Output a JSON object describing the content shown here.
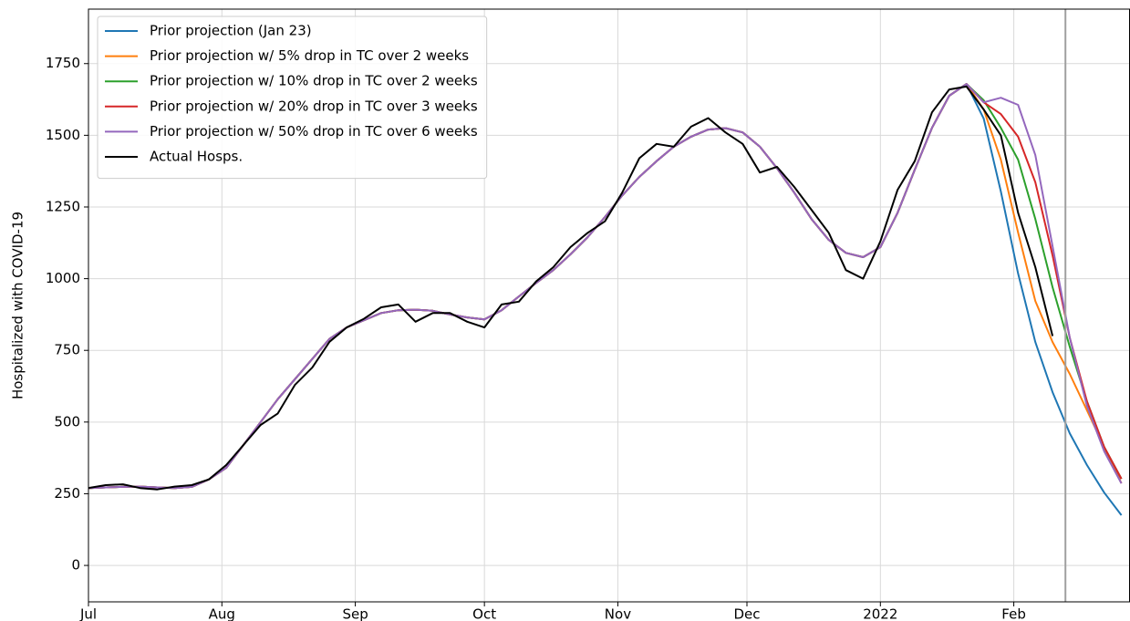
{
  "chart_data": {
    "type": "line",
    "ylabel": "Hospitalized with COVID-19",
    "x": [
      0,
      4,
      8,
      12,
      16,
      20,
      24,
      28,
      32,
      36,
      40,
      44,
      48,
      52,
      56,
      60,
      64,
      68,
      72,
      76,
      80,
      84,
      88,
      92,
      96,
      100,
      104,
      108,
      112,
      116,
      120,
      124,
      128,
      132,
      136,
      140,
      144,
      148,
      152,
      156,
      160,
      164,
      168,
      172,
      176,
      180,
      184,
      188,
      192,
      196,
      200,
      204,
      208,
      212,
      216,
      220,
      224,
      228,
      232,
      236,
      240
    ],
    "xlim": [
      0,
      242
    ],
    "xticks": [
      {
        "value": 0,
        "label": "Jul"
      },
      {
        "value": 31,
        "label": "Aug"
      },
      {
        "value": 62,
        "label": "Sep"
      },
      {
        "value": 92,
        "label": "Oct"
      },
      {
        "value": 123,
        "label": "Nov"
      },
      {
        "value": 153,
        "label": "Dec"
      },
      {
        "value": 184,
        "label": "2022"
      },
      {
        "value": 215,
        "label": "Feb"
      }
    ],
    "ylim": [
      -127,
      1940
    ],
    "yticks": [
      0,
      250,
      500,
      750,
      1000,
      1250,
      1500,
      1750
    ],
    "grid": true,
    "legend": "upper left",
    "vline": 227,
    "vline_color": "#a0a0a0",
    "series": [
      {
        "name": "Prior projection (Jan 23)",
        "color": "#1f77b4",
        "values": [
          270,
          272,
          274,
          275,
          272,
          270,
          274,
          300,
          340,
          420,
          500,
          580,
          650,
          720,
          790,
          830,
          855,
          880,
          890,
          892,
          888,
          875,
          865,
          858,
          890,
          938,
          985,
          1030,
          1085,
          1145,
          1215,
          1290,
          1355,
          1410,
          1460,
          1495,
          1520,
          1525,
          1510,
          1460,
          1385,
          1300,
          1208,
          1135,
          1090,
          1075,
          1110,
          1230,
          1380,
          1526,
          1638,
          1679,
          1558,
          1304,
          1018,
          779,
          604,
          461,
          350,
          254,
          175
        ]
      },
      {
        "name": "Prior projection w/ 5% drop in TC over 2 weeks",
        "color": "#ff7f0e",
        "values": [
          270,
          272,
          274,
          275,
          272,
          270,
          274,
          300,
          340,
          420,
          500,
          580,
          650,
          720,
          790,
          830,
          855,
          880,
          890,
          892,
          888,
          875,
          865,
          858,
          890,
          938,
          985,
          1030,
          1085,
          1145,
          1215,
          1290,
          1355,
          1410,
          1460,
          1495,
          1520,
          1525,
          1510,
          1460,
          1385,
          1300,
          1208,
          1135,
          1090,
          1075,
          1110,
          1230,
          1380,
          1526,
          1638,
          1679,
          1590,
          1415,
          1161,
          922,
          779,
          668,
          541,
          413,
          286
        ]
      },
      {
        "name": "Prior projection w/ 10% drop in TC over 2 weeks",
        "color": "#2ca02c",
        "values": [
          270,
          272,
          274,
          275,
          272,
          270,
          274,
          300,
          340,
          420,
          500,
          580,
          650,
          720,
          790,
          830,
          855,
          880,
          890,
          892,
          888,
          875,
          865,
          858,
          890,
          938,
          985,
          1030,
          1085,
          1145,
          1215,
          1290,
          1355,
          1410,
          1460,
          1495,
          1520,
          1525,
          1510,
          1460,
          1385,
          1300,
          1208,
          1135,
          1090,
          1075,
          1110,
          1230,
          1380,
          1526,
          1638,
          1679,
          1622,
          1526,
          1415,
          1208,
          970,
          763,
          572,
          413,
          302
        ]
      },
      {
        "name": "Prior projection w/ 20% drop in TC over 3 weeks",
        "color": "#d62728",
        "values": [
          270,
          272,
          274,
          275,
          272,
          270,
          274,
          300,
          340,
          420,
          500,
          580,
          650,
          720,
          790,
          830,
          855,
          880,
          890,
          892,
          888,
          875,
          865,
          858,
          890,
          938,
          985,
          1030,
          1085,
          1145,
          1215,
          1290,
          1355,
          1410,
          1460,
          1495,
          1520,
          1525,
          1510,
          1460,
          1385,
          1300,
          1208,
          1135,
          1090,
          1075,
          1110,
          1230,
          1380,
          1526,
          1638,
          1679,
          1615,
          1574,
          1495,
          1336,
          1081,
          795,
          572,
          413,
          302
        ]
      },
      {
        "name": "Prior projection w/ 50% drop in TC over 6 weeks",
        "color": "#9467bd",
        "values": [
          270,
          272,
          274,
          275,
          272,
          270,
          274,
          300,
          340,
          420,
          500,
          580,
          650,
          720,
          790,
          830,
          855,
          880,
          890,
          892,
          888,
          875,
          865,
          858,
          890,
          938,
          985,
          1030,
          1085,
          1145,
          1215,
          1290,
          1355,
          1410,
          1460,
          1495,
          1520,
          1525,
          1510,
          1460,
          1385,
          1300,
          1208,
          1135,
          1090,
          1075,
          1110,
          1230,
          1380,
          1526,
          1638,
          1679,
          1615,
          1631,
          1606,
          1431,
          1113,
          795,
          556,
          398,
          286
        ]
      },
      {
        "name": "Actual Hosps.",
        "color": "#000000",
        "values": [
          270,
          280,
          283,
          270,
          265,
          275,
          280,
          300,
          350,
          420,
          490,
          530,
          630,
          690,
          780,
          830,
          860,
          900,
          910,
          850,
          880,
          880,
          850,
          830,
          910,
          920,
          990,
          1040,
          1110,
          1160,
          1200,
          1300,
          1420,
          1470,
          1460,
          1530,
          1560,
          1510,
          1470,
          1370,
          1390,
          1320,
          1240,
          1160,
          1030,
          1000,
          1130,
          1310,
          1410,
          1580,
          1660,
          1670,
          1590,
          1500,
          1230,
          1040,
          800,
          null,
          null,
          null,
          null
        ]
      }
    ]
  }
}
